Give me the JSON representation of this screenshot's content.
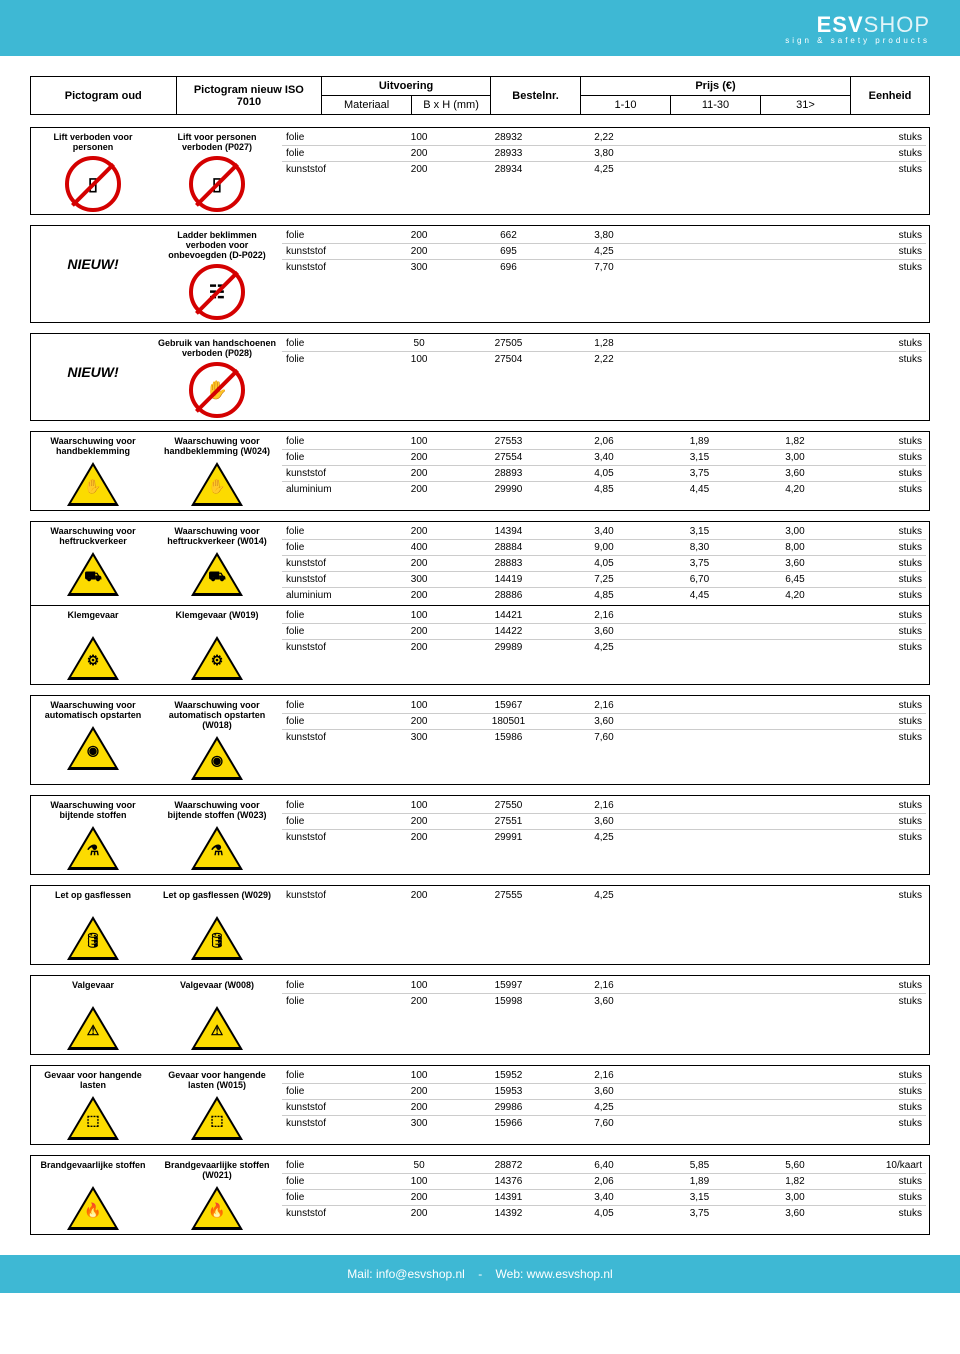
{
  "brand": {
    "name1": "ESV",
    "name2": "SHOP",
    "tagline": "sign & safety products"
  },
  "header": {
    "col_old": "Pictogram oud",
    "col_new": "Pictogram nieuw ISO 7010",
    "col_uitvoering": "Uitvoering",
    "col_material": "Materiaal",
    "col_dim": "B x H (mm)",
    "col_bestel": "Bestelnr.",
    "col_prijs": "Prijs (€)",
    "col_p1": "1-10",
    "col_p2": "11-30",
    "col_p3": "31>",
    "col_unit": "Eenheid"
  },
  "footer": {
    "mail_label": "Mail: info@esvshop.nl",
    "sep": "-",
    "web_label": "Web: www.esvshop.nl"
  },
  "sections": [
    {
      "old_label": "Lift verboden voor personen",
      "new_label": "Lift voor personen verboden (P027)",
      "icon_type": "prohib",
      "glyph_old": "▯",
      "glyph_new": "▯",
      "nieuw": false,
      "rows": [
        [
          "folie",
          "100",
          "28932",
          "2,22",
          "",
          "",
          "stuks"
        ],
        [
          "folie",
          "200",
          "28933",
          "3,80",
          "",
          "",
          "stuks"
        ],
        [
          "kunststof",
          "200",
          "28934",
          "4,25",
          "",
          "",
          "stuks"
        ]
      ]
    },
    {
      "old_label": "",
      "new_label": "Ladder beklimmen verboden voor onbevoegden (D-P022)",
      "icon_type": "prohib",
      "glyph_old": "",
      "glyph_new": "☷",
      "nieuw": true,
      "rows": [
        [
          "folie",
          "200",
          "662",
          "3,80",
          "",
          "",
          "stuks"
        ],
        [
          "kunststof",
          "200",
          "695",
          "4,25",
          "",
          "",
          "stuks"
        ],
        [
          "kunststof",
          "300",
          "696",
          "7,70",
          "",
          "",
          "stuks"
        ]
      ]
    },
    {
      "old_label": "",
      "new_label": "Gebruik van handschoenen verboden (P028)",
      "icon_type": "prohib",
      "glyph_old": "",
      "glyph_new": "✋",
      "nieuw": true,
      "rows": [
        [
          "folie",
          "50",
          "27505",
          "1,28",
          "",
          "",
          "stuks"
        ],
        [
          "folie",
          "100",
          "27504",
          "2,22",
          "",
          "",
          "stuks"
        ]
      ]
    },
    {
      "old_label": "Waarschuwing voor handbeklemming",
      "new_label": "Waarschuwing voor handbeklemming (W024)",
      "icon_type": "warn",
      "glyph_old": "✋",
      "glyph_new": "✋",
      "nieuw": false,
      "rows": [
        [
          "folie",
          "100",
          "27553",
          "2,06",
          "1,89",
          "1,82",
          "stuks"
        ],
        [
          "folie",
          "200",
          "27554",
          "3,40",
          "3,15",
          "3,00",
          "stuks"
        ],
        [
          "kunststof",
          "200",
          "28893",
          "4,05",
          "3,75",
          "3,60",
          "stuks"
        ],
        [
          "aluminium",
          "200",
          "29990",
          "4,85",
          "4,45",
          "4,20",
          "stuks"
        ]
      ]
    },
    {
      "old_label": "Waarschuwing voor heftruckverkeer",
      "new_label": "Waarschuwing voor heftruckverkeer (W014)",
      "icon_type": "warn",
      "glyph_old": "⛟",
      "glyph_new": "⛟",
      "nieuw": false,
      "rows": [
        [
          "folie",
          "200",
          "14394",
          "3,40",
          "3,15",
          "3,00",
          "stuks"
        ],
        [
          "folie",
          "400",
          "28884",
          "9,00",
          "8,30",
          "8,00",
          "stuks"
        ],
        [
          "kunststof",
          "200",
          "28883",
          "4,05",
          "3,75",
          "3,60",
          "stuks"
        ],
        [
          "kunststof",
          "300",
          "14419",
          "7,25",
          "6,70",
          "6,45",
          "stuks"
        ],
        [
          "aluminium",
          "200",
          "28886",
          "4,85",
          "4,45",
          "4,20",
          "stuks"
        ]
      ],
      "follow": {
        "old_label": "Klemgevaar",
        "new_label": "Klemgevaar (W019)",
        "icon_type": "warn",
        "glyph_old": "⚙",
        "glyph_new": "⚙",
        "rows": [
          [
            "folie",
            "100",
            "14421",
            "2,16",
            "",
            "",
            "stuks"
          ],
          [
            "folie",
            "200",
            "14422",
            "3,60",
            "",
            "",
            "stuks"
          ],
          [
            "kunststof",
            "200",
            "29989",
            "4,25",
            "",
            "",
            "stuks"
          ]
        ]
      }
    },
    {
      "old_label": "Waarschuwing voor automatisch opstarten",
      "new_label": "Waarschuwing voor automatisch opstarten (W018)",
      "icon_type": "warn",
      "glyph_old": "◉",
      "glyph_new": "◉",
      "nieuw": false,
      "rows": [
        [
          "folie",
          "100",
          "15967",
          "2,16",
          "",
          "",
          "stuks"
        ],
        [
          "folie",
          "200",
          "180501",
          "3,60",
          "",
          "",
          "stuks"
        ],
        [
          "kunststof",
          "300",
          "15986",
          "7,60",
          "",
          "",
          "stuks"
        ]
      ]
    },
    {
      "old_label": "Waarschuwing voor bijtende stoffen",
      "new_label": "Waarschuwing voor bijtende stoffen (W023)",
      "icon_type": "warn",
      "glyph_old": "⚗",
      "glyph_new": "⚗",
      "nieuw": false,
      "rows": [
        [
          "folie",
          "100",
          "27550",
          "2,16",
          "",
          "",
          "stuks"
        ],
        [
          "folie",
          "200",
          "27551",
          "3,60",
          "",
          "",
          "stuks"
        ],
        [
          "kunststof",
          "200",
          "29991",
          "4,25",
          "",
          "",
          "stuks"
        ]
      ]
    },
    {
      "old_label": "Let op gasflessen",
      "new_label": "Let op gasflessen (W029)",
      "icon_type": "warn",
      "glyph_old": "🛢",
      "glyph_new": "🛢",
      "nieuw": false,
      "rows": [
        [
          "kunststof",
          "200",
          "27555",
          "4,25",
          "",
          "",
          "stuks"
        ]
      ]
    },
    {
      "old_label": "Valgevaar",
      "new_label": "Valgevaar (W008)",
      "icon_type": "warn",
      "glyph_old": "⚠",
      "glyph_new": "⚠",
      "nieuw": false,
      "rows": [
        [
          "folie",
          "100",
          "15997",
          "2,16",
          "",
          "",
          "stuks"
        ],
        [
          "folie",
          "200",
          "15998",
          "3,60",
          "",
          "",
          "stuks"
        ]
      ]
    },
    {
      "old_label": "Gevaar voor hangende lasten",
      "new_label": "Gevaar voor hangende lasten (W015)",
      "icon_type": "warn",
      "glyph_old": "⬚",
      "glyph_new": "⬚",
      "nieuw": false,
      "rows": [
        [
          "folie",
          "100",
          "15952",
          "2,16",
          "",
          "",
          "stuks"
        ],
        [
          "folie",
          "200",
          "15953",
          "3,60",
          "",
          "",
          "stuks"
        ],
        [
          "kunststof",
          "200",
          "29986",
          "4,25",
          "",
          "",
          "stuks"
        ],
        [
          "kunststof",
          "300",
          "15966",
          "7,60",
          "",
          "",
          "stuks"
        ]
      ]
    },
    {
      "old_label": "Brandgevaarlijke stoffen",
      "new_label": "Brandgevaarlijke stoffen (W021)",
      "icon_type": "warn",
      "glyph_old": "🔥",
      "glyph_new": "🔥",
      "nieuw": false,
      "rows": [
        [
          "folie",
          "50",
          "28872",
          "6,40",
          "5,85",
          "5,60",
          "10/kaart"
        ],
        [
          "folie",
          "100",
          "14376",
          "2,06",
          "1,89",
          "1,82",
          "stuks"
        ],
        [
          "folie",
          "200",
          "14391",
          "3,40",
          "3,15",
          "3,00",
          "stuks"
        ],
        [
          "kunststof",
          "200",
          "14392",
          "4,05",
          "3,75",
          "3,60",
          "stuks"
        ]
      ]
    }
  ]
}
